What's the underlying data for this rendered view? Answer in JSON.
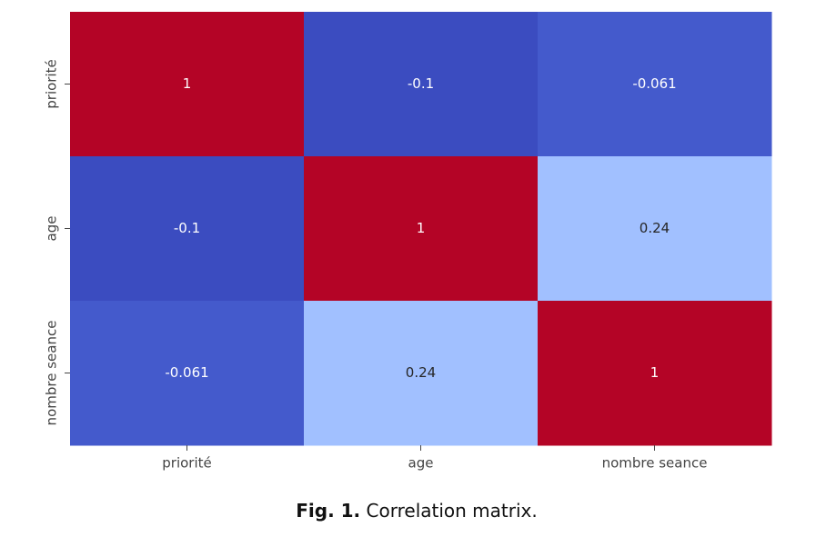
{
  "chart_data": {
    "type": "heatmap",
    "x_categories": [
      "priorité",
      "age",
      "nombre seance"
    ],
    "y_categories": [
      "priorité",
      "age",
      "nombre seance"
    ],
    "values": [
      [
        1,
        -0.1,
        -0.061
      ],
      [
        -0.1,
        1,
        0.24
      ],
      [
        -0.061,
        0.24,
        1
      ]
    ],
    "colors": [
      [
        "#b40426",
        "#3b4cc0",
        "#445acc"
      ],
      [
        "#3b4cc0",
        "#b40426",
        "#a1c0ff"
      ],
      [
        "#445acc",
        "#a1c0ff",
        "#b40426"
      ]
    ]
  },
  "caption": {
    "label": "Fig. 1.",
    "text": "Correlation matrix."
  }
}
